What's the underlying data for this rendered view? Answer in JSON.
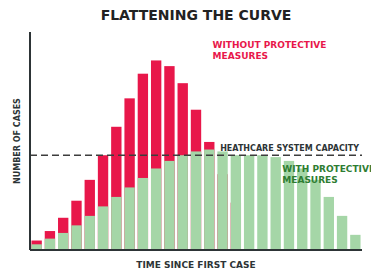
{
  "chart_data": {
    "type": "bar",
    "title": "FLATTENING THE CURVE",
    "x_label": "TIME SINCE FIRST CASE",
    "y_label": "NUMBER OF CASES",
    "categories": [
      null,
      null,
      null,
      null,
      null,
      null,
      null,
      null,
      null,
      null,
      null,
      null,
      null,
      null,
      null,
      null,
      null,
      null,
      null,
      null,
      null,
      null,
      null,
      null,
      null
    ],
    "series": [
      {
        "color": "#E8174A",
        "values": [
          0.05,
          0.1,
          0.17,
          0.26,
          0.37,
          0.5,
          0.65,
          0.8,
          0.93,
          1.0,
          0.97,
          0.88,
          0.74,
          0.57,
          0.4,
          0.25,
          0.0,
          0.0,
          0.0,
          0.0,
          0.0,
          0.0,
          0.0,
          0.0,
          0.0
        ]
      },
      {
        "color": "#A5D6A7",
        "values": [
          0.03,
          0.06,
          0.09,
          0.13,
          0.18,
          0.23,
          0.28,
          0.33,
          0.38,
          0.43,
          0.47,
          0.5,
          0.52,
          0.53,
          0.52,
          0.5,
          0.5,
          0.5,
          0.49,
          0.47,
          0.43,
          0.37,
          0.28,
          0.18,
          0.08
        ]
      }
    ],
    "stacked": false,
    "ylim": [
      0,
      1.15
    ],
    "yticks": [],
    "tick_labels": false,
    "grid": false,
    "annotations": [
      {
        "text": "WITHOUT PROTECTIVE\nMEASURES",
        "color": "#E8174A"
      },
      {
        "text": "WITH PROTECTIVE\nMEASURES",
        "color": "#2E7D32"
      }
    ],
    "reference_lines": [
      {
        "y": 0.5,
        "label": "HEATHCARE SYSTEM CAPACITY"
      }
    ]
  }
}
